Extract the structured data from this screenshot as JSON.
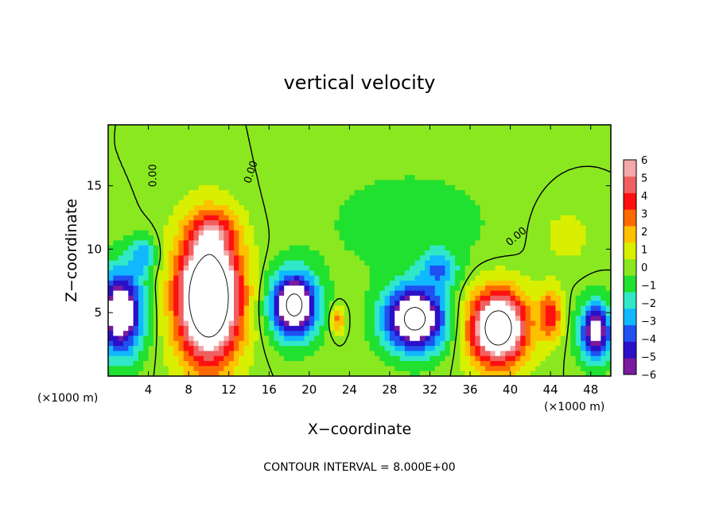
{
  "chart_data": {
    "type": "heatmap",
    "title": "vertical velocity",
    "xlabel": "X−coordinate",
    "ylabel": "Z−coordinate",
    "x_unit_left": "(×1000 m)",
    "x_unit_right": "(×1000 m)",
    "footer": "CONTOUR INTERVAL = 8.000E+00",
    "xlim": [
      0,
      50
    ],
    "ylim": [
      0,
      19.8
    ],
    "x_ticks": [
      4,
      8,
      12,
      16,
      20,
      24,
      28,
      32,
      36,
      40,
      44,
      48
    ],
    "y_ticks": [
      5,
      10,
      15
    ],
    "colorbar": {
      "min": -6,
      "max": 6,
      "ticks": [
        {
          "value": 6,
          "label": "6"
        },
        {
          "value": 5,
          "label": "5"
        },
        {
          "value": 4,
          "label": "4"
        },
        {
          "value": 3,
          "label": "3"
        },
        {
          "value": 2,
          "label": "2"
        },
        {
          "value": 1,
          "label": "1"
        },
        {
          "value": 0,
          "label": "0"
        },
        {
          "value": -1,
          "label": "−1"
        },
        {
          "value": -2,
          "label": "−2"
        },
        {
          "value": -3,
          "label": "−3"
        },
        {
          "value": -4,
          "label": "−4"
        },
        {
          "value": -5,
          "label": "−5"
        },
        {
          "value": -6,
          "label": "−6"
        }
      ],
      "colors": [
        "#7a1a9e",
        "#2a10c8",
        "#2050f0",
        "#10b8ff",
        "#30e8c8",
        "#20e030",
        "#8ae820",
        "#d8f000",
        "#ffc000",
        "#ff6a00",
        "#ff1010",
        "#f06060",
        "#f4a8a8"
      ]
    },
    "contour_labels": [
      {
        "x": 4.8,
        "z": 15.8,
        "text": "0.00",
        "rotate": -90
      },
      {
        "x": 14.5,
        "z": 16.0,
        "text": "0.00",
        "rotate": -72
      },
      {
        "x": 40.8,
        "z": 10.8,
        "text": "0.00",
        "rotate": -40
      }
    ],
    "features": [
      {
        "x": 10.0,
        "z": 6.2,
        "rx": 3.5,
        "rz": 5.6,
        "value": 12
      },
      {
        "x": 38.8,
        "z": 3.8,
        "rx": 3.2,
        "rz": 3.3,
        "value": 10
      },
      {
        "x": 18.5,
        "z": 5.6,
        "rx": 2.6,
        "rz": 2.9,
        "value": -9
      },
      {
        "x": 30.5,
        "z": 4.5,
        "rx": 3.4,
        "rz": 2.9,
        "value": -9
      },
      {
        "x": 1.2,
        "z": 5.0,
        "rx": 2.6,
        "rz": 3.8,
        "value": -8
      },
      {
        "x": 48.5,
        "z": 3.5,
        "rx": 1.8,
        "rz": 2.6,
        "value": -7
      },
      {
        "x": 44.0,
        "z": 4.8,
        "rx": 1.3,
        "rz": 2.2,
        "value": 4
      },
      {
        "x": 22.8,
        "z": 4.5,
        "rx": 0.8,
        "rz": 1.2,
        "value": 3
      },
      {
        "x": 10.5,
        "z": 11.5,
        "rx": 2.5,
        "rz": 1.8,
        "value": 2.5
      },
      {
        "x": 3.5,
        "z": 9.5,
        "rx": 1.5,
        "rz": 1.6,
        "value": -3
      },
      {
        "x": 33.0,
        "z": 8.5,
        "rx": 2.0,
        "rz": 1.6,
        "value": -3
      },
      {
        "x": 30.0,
        "z": 12.0,
        "rx": 10.0,
        "rz": 5.0,
        "value": -1
      },
      {
        "x": 45.5,
        "z": 11.0,
        "rx": 3.5,
        "rz": 3.0,
        "value": 0.8
      }
    ]
  }
}
